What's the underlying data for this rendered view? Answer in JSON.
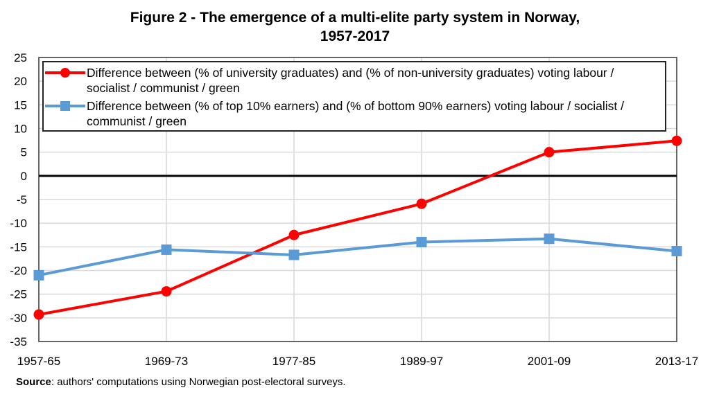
{
  "chart_data": {
    "type": "line",
    "title": "Figure 2 - The emergence of a multi-elite party system in Norway, 1957-2017",
    "title_lines": [
      "Figure 2 - The emergence of a multi-elite party system in Norway,",
      "1957-2017"
    ],
    "xlabel": "",
    "ylabel": "",
    "categories": [
      "1957-65",
      "1969-73",
      "1977-85",
      "1989-97",
      "2001-09",
      "2013-17"
    ],
    "ylim": [
      -35,
      25
    ],
    "yticks": [
      25,
      20,
      15,
      10,
      5,
      0,
      -5,
      -10,
      -15,
      -20,
      -25,
      -30,
      -35
    ],
    "grid": true,
    "zero_line": true,
    "legend_position": "top",
    "series": [
      {
        "name": "Difference between (% of university graduates) and (% of non-university graduates) voting labour / socialist / communist / green",
        "legend_lines": [
          "Difference between (% of university graduates) and (% of non-university graduates) voting labour /",
          "socialist / communist / green"
        ],
        "color": "#FF0000",
        "marker": "circle",
        "values": [
          -29.3,
          -24.4,
          -12.5,
          -5.9,
          5.0,
          7.4
        ]
      },
      {
        "name": "Difference between (% of top 10% earners) and (% of bottom 90% earners) voting labour / socialist / communist / green",
        "legend_lines": [
          "Difference between (% of top 10% earners) and (% of bottom 90% earners) voting labour / socialist /",
          "communist / green"
        ],
        "color": "#5B9BD5",
        "marker": "square",
        "values": [
          -21.0,
          -15.6,
          -16.7,
          -14.0,
          -13.3,
          -15.9
        ]
      }
    ]
  },
  "source": {
    "label": "Source",
    "text": ": authors' computations using Norwegian post-electoral surveys."
  }
}
